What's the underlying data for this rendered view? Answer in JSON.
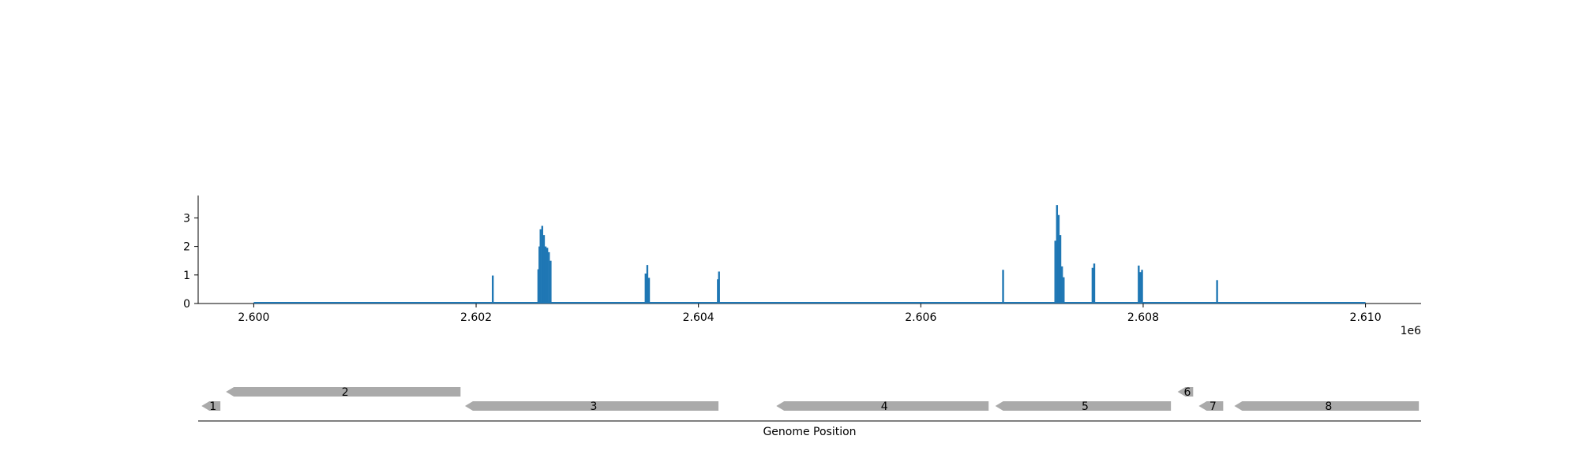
{
  "chart_data": [
    {
      "type": "area",
      "title": "",
      "xlabel": "",
      "ylabel": "",
      "x_offset_label": "1e6",
      "xlim": [
        2599500,
        2610500
      ],
      "ylim": [
        0,
        3.8
      ],
      "x_ticks": [
        2600000,
        2602000,
        2604000,
        2606000,
        2608000,
        2610000
      ],
      "x_tick_labels": [
        "2.600",
        "2.602",
        "2.604",
        "2.606",
        "2.608",
        "2.610"
      ],
      "y_ticks": [
        0,
        1,
        2,
        3
      ],
      "y_tick_labels": [
        "0",
        "1",
        "2",
        "3"
      ],
      "grid": false,
      "color": "#1f77b4",
      "baseline_x": [
        2600000,
        2610000
      ],
      "spikes": [
        {
          "x": 2602150,
          "y": 0.98
        },
        {
          "x": 2602560,
          "y": 1.2
        },
        {
          "x": 2602570,
          "y": 2.0
        },
        {
          "x": 2602580,
          "y": 2.6
        },
        {
          "x": 2602595,
          "y": 2.72
        },
        {
          "x": 2602610,
          "y": 2.4
        },
        {
          "x": 2602625,
          "y": 2.0
        },
        {
          "x": 2602640,
          "y": 1.95
        },
        {
          "x": 2602655,
          "y": 1.8
        },
        {
          "x": 2602670,
          "y": 1.5
        },
        {
          "x": 2603525,
          "y": 1.05
        },
        {
          "x": 2603540,
          "y": 1.35
        },
        {
          "x": 2603555,
          "y": 0.9
        },
        {
          "x": 2604175,
          "y": 0.85
        },
        {
          "x": 2604185,
          "y": 1.12
        },
        {
          "x": 2606740,
          "y": 1.18
        },
        {
          "x": 2607210,
          "y": 2.2
        },
        {
          "x": 2607225,
          "y": 3.45
        },
        {
          "x": 2607240,
          "y": 3.1
        },
        {
          "x": 2607255,
          "y": 2.4
        },
        {
          "x": 2607270,
          "y": 1.3
        },
        {
          "x": 2607285,
          "y": 0.92
        },
        {
          "x": 2607545,
          "y": 1.25
        },
        {
          "x": 2607560,
          "y": 1.4
        },
        {
          "x": 2607960,
          "y": 1.33
        },
        {
          "x": 2607975,
          "y": 1.1
        },
        {
          "x": 2607990,
          "y": 1.18
        },
        {
          "x": 2608665,
          "y": 0.82
        }
      ]
    },
    {
      "type": "gene-track",
      "xlabel": "Genome Position",
      "xlim": [
        2599500,
        2610500
      ],
      "color": "#aaaaaa",
      "genes": [
        {
          "label": "1",
          "start": 2599530,
          "end": 2599700,
          "strand": "-",
          "row": 0
        },
        {
          "label": "2",
          "start": 2599750,
          "end": 2601860,
          "strand": "-",
          "row": 1
        },
        {
          "label": "3",
          "start": 2601900,
          "end": 2604180,
          "strand": "-",
          "row": 0
        },
        {
          "label": "4",
          "start": 2604700,
          "end": 2606610,
          "strand": "-",
          "row": 0
        },
        {
          "label": "5",
          "start": 2606670,
          "end": 2608250,
          "strand": "-",
          "row": 0
        },
        {
          "label": "6",
          "start": 2608310,
          "end": 2608450,
          "strand": "-",
          "row": 1
        },
        {
          "label": "7",
          "start": 2608500,
          "end": 2608720,
          "strand": "-",
          "row": 0
        },
        {
          "label": "8",
          "start": 2608820,
          "end": 2610480,
          "strand": "-",
          "row": 0
        }
      ]
    }
  ]
}
